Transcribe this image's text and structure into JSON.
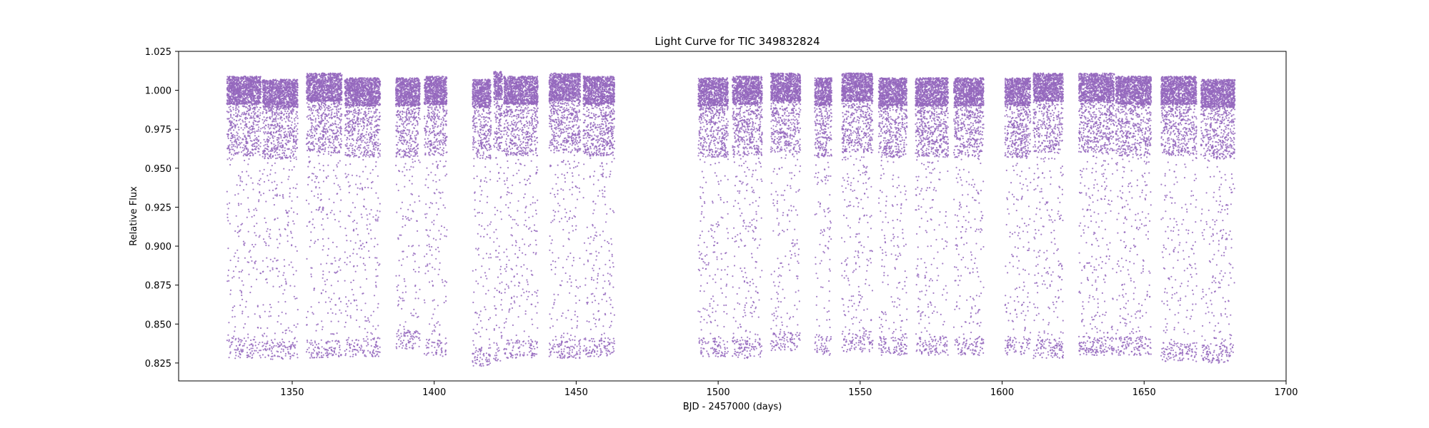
{
  "chart_data": {
    "type": "scatter",
    "title": "Light Curve for TIC 349832824",
    "xlabel": "BJD - 2457000 (days)",
    "ylabel": "Relative Flux",
    "xlim": [
      1310,
      1700
    ],
    "ylim": [
      0.8135,
      1.025
    ],
    "x_ticks": [
      1350,
      1400,
      1450,
      1500,
      1550,
      1600,
      1650,
      1700
    ],
    "y_ticks": [
      0.825,
      0.85,
      0.875,
      0.9,
      0.925,
      0.95,
      0.975,
      1.0,
      1.025
    ],
    "grid": false,
    "marker_color": "#9467bd",
    "series": [
      {
        "name": "flux",
        "segments": [
          {
            "x_start": 1327.0,
            "x_end": 1339.0,
            "baseline": 1.0,
            "min_flux": 0.828
          },
          {
            "x_start": 1339.5,
            "x_end": 1352.0,
            "baseline": 0.998,
            "min_flux": 0.827
          },
          {
            "x_start": 1355.0,
            "x_end": 1367.5,
            "baseline": 1.002,
            "min_flux": 0.828
          },
          {
            "x_start": 1368.5,
            "x_end": 1381.0,
            "baseline": 0.999,
            "min_flux": 0.829
          },
          {
            "x_start": 1386.5,
            "x_end": 1395.0,
            "baseline": 0.999,
            "min_flux": 0.834
          },
          {
            "x_start": 1396.5,
            "x_end": 1404.5,
            "baseline": 1.0,
            "min_flux": 0.829
          },
          {
            "x_start": 1413.5,
            "x_end": 1420.0,
            "baseline": 0.998,
            "min_flux": 0.823
          },
          {
            "x_start": 1421.0,
            "x_end": 1424.0,
            "baseline": 1.003,
            "min_flux": 0.826
          },
          {
            "x_start": 1424.5,
            "x_end": 1436.5,
            "baseline": 1.0,
            "min_flux": 0.828
          },
          {
            "x_start": 1440.5,
            "x_end": 1451.5,
            "baseline": 1.002,
            "min_flux": 0.828
          },
          {
            "x_start": 1452.5,
            "x_end": 1463.5,
            "baseline": 1.0,
            "min_flux": 0.829
          },
          {
            "x_start": 1493.0,
            "x_end": 1503.5,
            "baseline": 0.999,
            "min_flux": 0.829
          },
          {
            "x_start": 1505.0,
            "x_end": 1515.5,
            "baseline": 1.0,
            "min_flux": 0.828
          },
          {
            "x_start": 1518.5,
            "x_end": 1529.0,
            "baseline": 1.002,
            "min_flux": 0.833
          },
          {
            "x_start": 1534.0,
            "x_end": 1540.0,
            "baseline": 0.999,
            "min_flux": 0.83
          },
          {
            "x_start": 1543.5,
            "x_end": 1554.5,
            "baseline": 1.002,
            "min_flux": 0.832
          },
          {
            "x_start": 1556.5,
            "x_end": 1566.5,
            "baseline": 0.999,
            "min_flux": 0.83
          },
          {
            "x_start": 1569.5,
            "x_end": 1581.0,
            "baseline": 0.999,
            "min_flux": 0.83
          },
          {
            "x_start": 1583.0,
            "x_end": 1593.5,
            "baseline": 0.999,
            "min_flux": 0.83
          },
          {
            "x_start": 1601.0,
            "x_end": 1610.0,
            "baseline": 0.999,
            "min_flux": 0.83
          },
          {
            "x_start": 1611.0,
            "x_end": 1621.5,
            "baseline": 1.002,
            "min_flux": 0.828
          },
          {
            "x_start": 1627.0,
            "x_end": 1639.5,
            "baseline": 1.002,
            "min_flux": 0.83
          },
          {
            "x_start": 1640.0,
            "x_end": 1652.5,
            "baseline": 1.0,
            "min_flux": 0.83
          },
          {
            "x_start": 1656.0,
            "x_end": 1668.5,
            "baseline": 1.0,
            "min_flux": 0.826
          },
          {
            "x_start": 1670.0,
            "x_end": 1682.0,
            "baseline": 0.998,
            "min_flux": 0.825
          }
        ]
      }
    ]
  }
}
